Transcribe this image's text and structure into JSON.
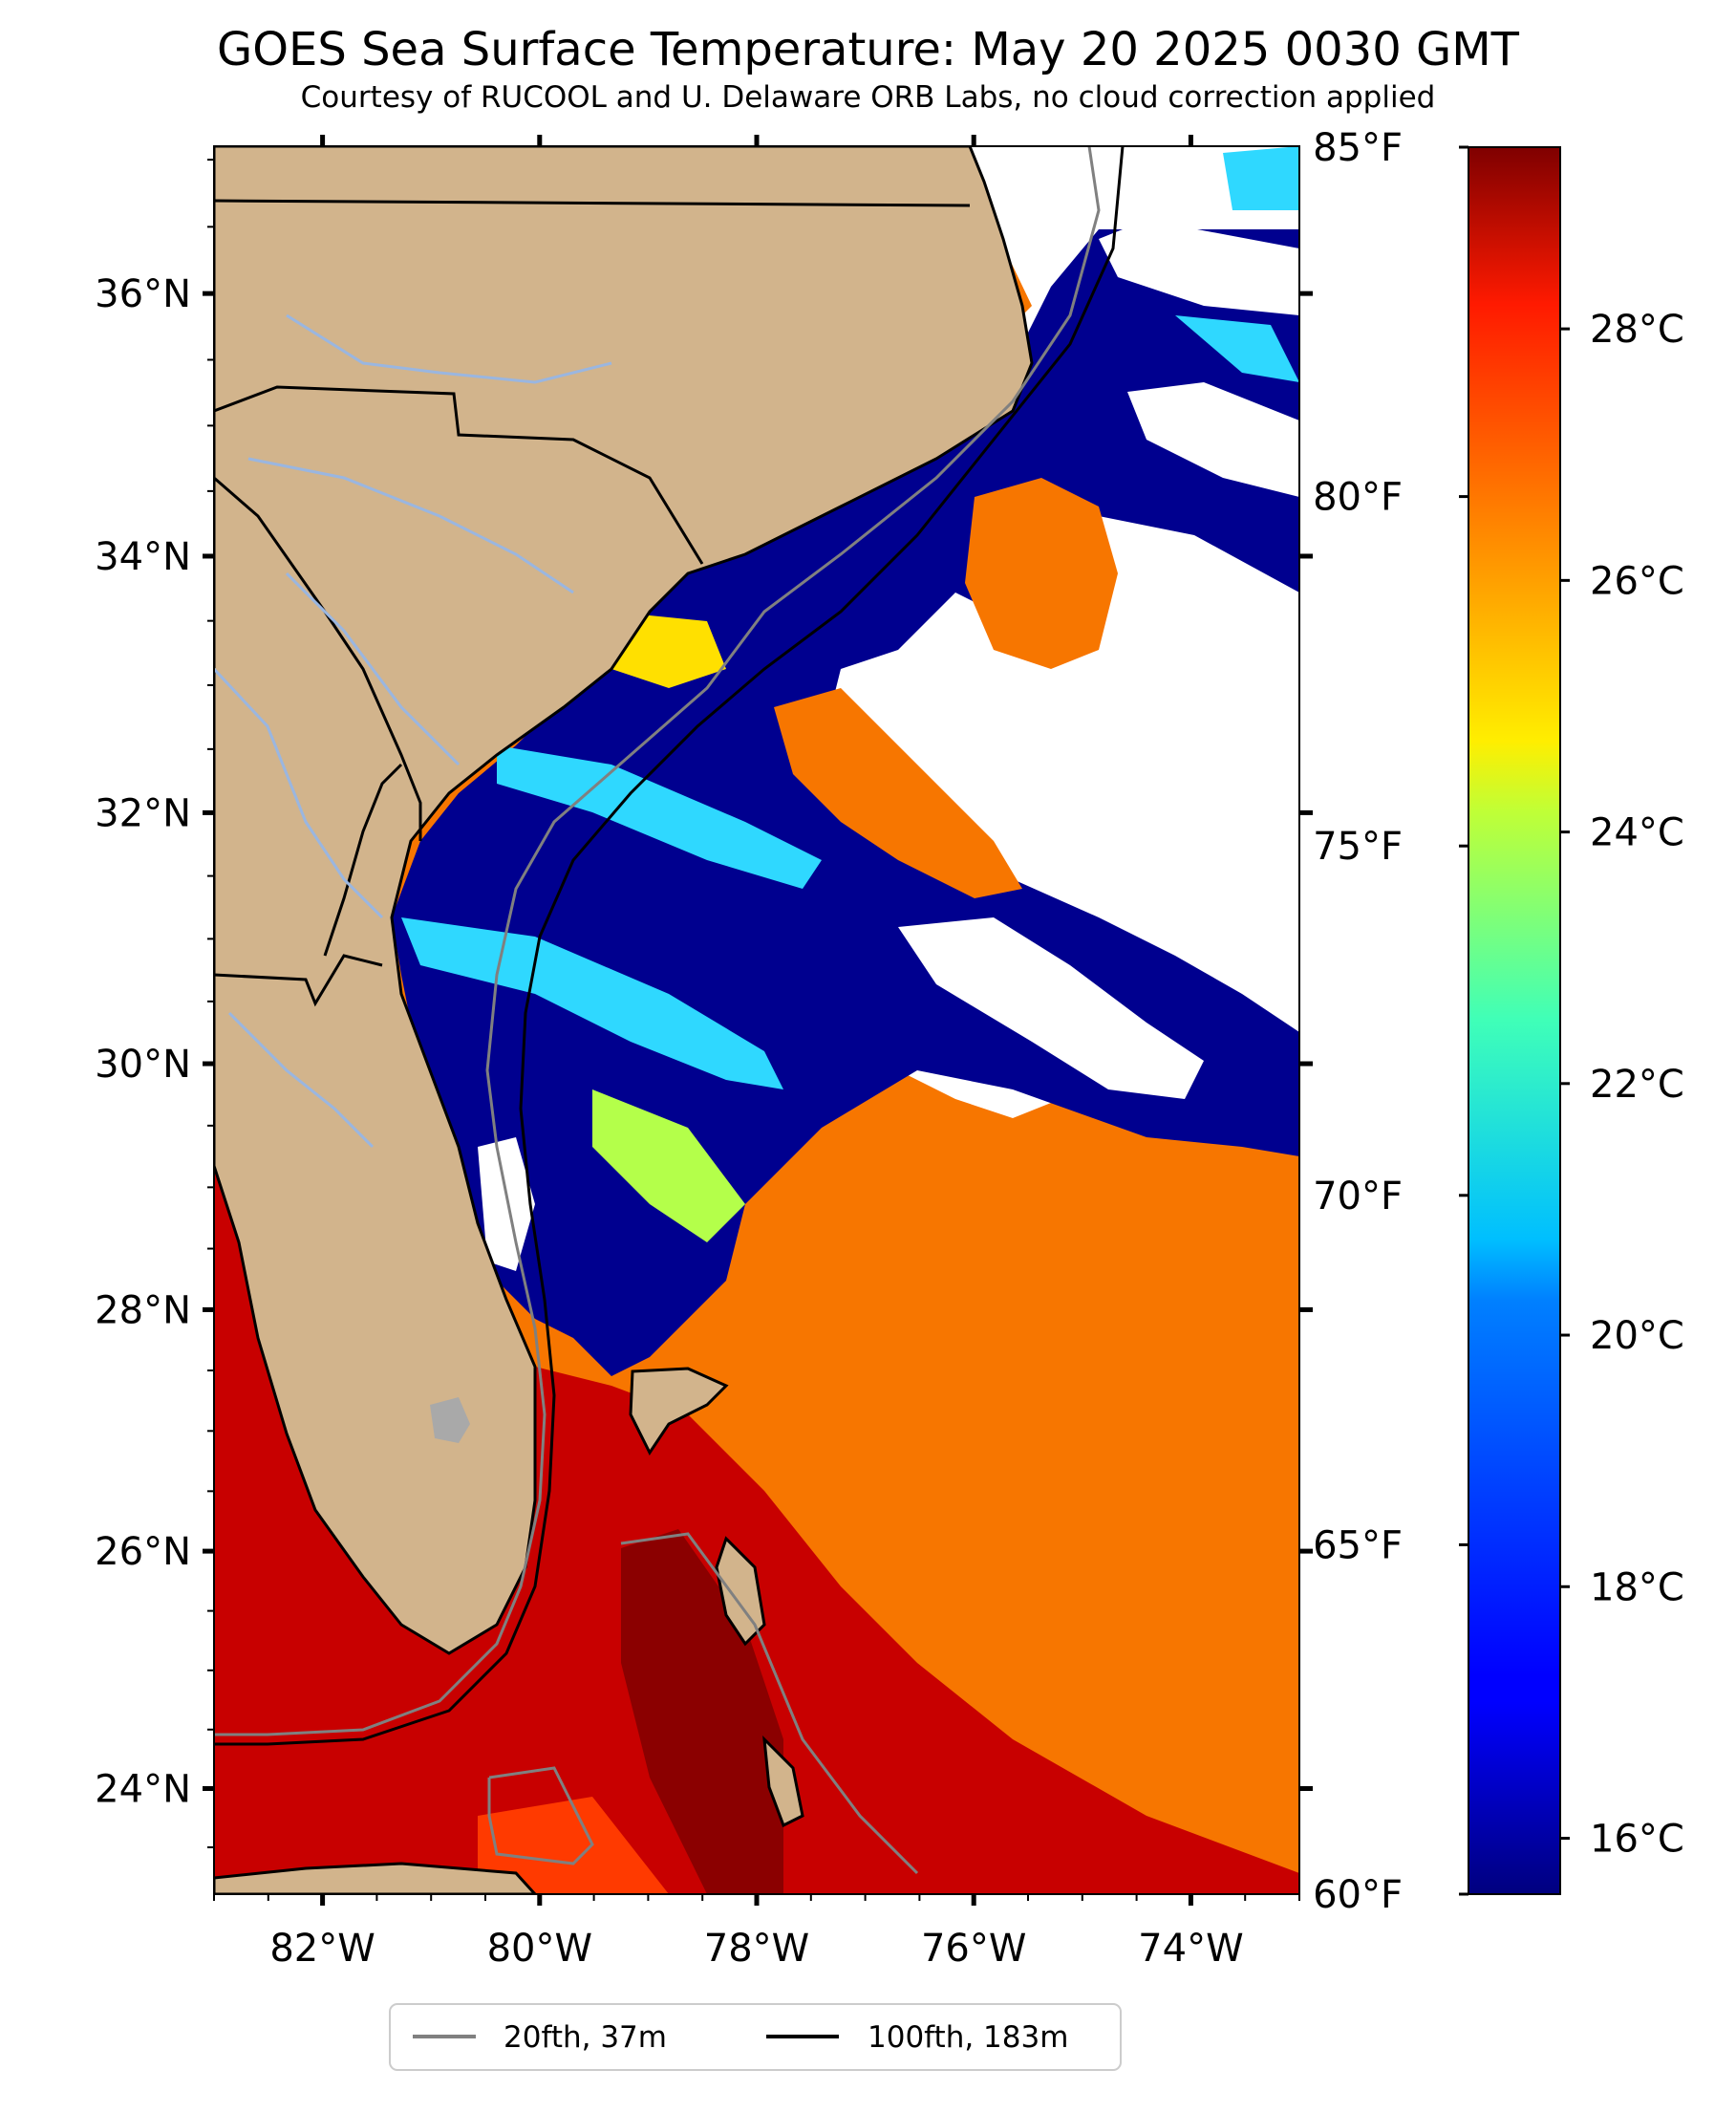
{
  "title": "GOES Sea Surface Temperature: May 20 2025 0030 GMT",
  "subtitle": "Courtesy of RUCOOL and U. Delaware ORB Labs, no cloud correction applied",
  "map": {
    "lon_range": [
      -83.0,
      -73.0
    ],
    "lat_range": [
      23.1,
      37.1
    ],
    "lon_labels": [
      {
        "lon": -82,
        "label": "82°W"
      },
      {
        "lon": -80,
        "label": "80°W"
      },
      {
        "lon": -78,
        "label": "78°W"
      },
      {
        "lon": -76,
        "label": "76°W"
      },
      {
        "lon": -74,
        "label": "74°W"
      }
    ],
    "lat_labels": [
      {
        "lat": 36,
        "label": "36°N"
      },
      {
        "lat": 34,
        "label": "34°N"
      },
      {
        "lat": 32,
        "label": "32°N"
      },
      {
        "lat": 30,
        "label": "30°N"
      },
      {
        "lat": 28,
        "label": "28°N"
      },
      {
        "lat": 26,
        "label": "26°N"
      },
      {
        "lat": 24,
        "label": "24°N"
      }
    ],
    "colors": {
      "land": "#d2b48c",
      "cloud": "#ffffff",
      "cold": "#00008f",
      "warm": "#f97a00",
      "hot": "#b40000",
      "river": "#9ab6e0"
    }
  },
  "colorbar": {
    "colormap": "jet",
    "celsius_labels": [
      {
        "value": 16,
        "label": "16°C"
      },
      {
        "value": 18,
        "label": "18°C"
      },
      {
        "value": 20,
        "label": "20°C"
      },
      {
        "value": 22,
        "label": "22°C"
      },
      {
        "value": 24,
        "label": "24°C"
      },
      {
        "value": 26,
        "label": "26°C"
      },
      {
        "value": 28,
        "label": "28°C"
      }
    ],
    "fahrenheit_labels": [
      {
        "value": 60,
        "label": "60°F"
      },
      {
        "value": 65,
        "label": "65°F"
      },
      {
        "value": 70,
        "label": "70°F"
      },
      {
        "value": 75,
        "label": "75°F"
      },
      {
        "value": 80,
        "label": "80°F"
      },
      {
        "value": 85,
        "label": "85°F"
      }
    ],
    "range_f": [
      60,
      85
    ]
  },
  "legend": [
    {
      "label": "20fth, 37m",
      "color": "#808080"
    },
    {
      "label": "100fth, 183m",
      "color": "#000000"
    }
  ]
}
